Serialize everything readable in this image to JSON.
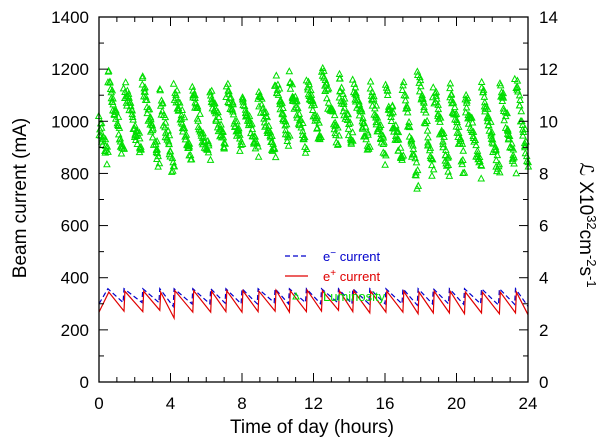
{
  "chart_data": {
    "type": "line",
    "xlabel": "Time of day (hours)",
    "ylabel": "Beam current (mA)",
    "y2label": "ℒ X10³²cm⁻²s⁻¹",
    "y2label_parts": {
      "prefix": "ℒ X10",
      "exp1": "32",
      "mid1": "cm",
      "exp2": "-2",
      "mid2": "s",
      "exp3": "-1"
    },
    "xlim": [
      0,
      24
    ],
    "ylim": [
      0,
      1400
    ],
    "y2lim": [
      0,
      14
    ],
    "x_ticks": [
      "0",
      "4",
      "8",
      "12",
      "16",
      "20",
      "24"
    ],
    "y_ticks": [
      "0",
      "200",
      "400",
      "600",
      "800",
      "1000",
      "1200",
      "1400"
    ],
    "y2_ticks": [
      "0",
      "2",
      "4",
      "6",
      "8",
      "10",
      "12",
      "14"
    ],
    "legend_position": "center-right",
    "series": [
      {
        "name": "e⁻ current",
        "name_base": "e",
        "name_sup": "−",
        "name_rest": " current",
        "style": "dashed",
        "color": "#0000cc",
        "axis": "left",
        "x": [
          0.0,
          0.5,
          1.35,
          1.4,
          2.4,
          2.45,
          3.35,
          3.4,
          4.15,
          4.2,
          5.2,
          5.25,
          6.2,
          6.25,
          7.05,
          7.1,
          7.95,
          8.0,
          8.85,
          8.9,
          9.8,
          9.85,
          10.6,
          10.65,
          11.55,
          11.6,
          12.4,
          12.45,
          13.35,
          13.4,
          14.15,
          14.2,
          15.1,
          15.15,
          16.0,
          16.05,
          16.95,
          17.0,
          17.8,
          17.85,
          18.65,
          18.7,
          19.55,
          19.6,
          20.4,
          20.45,
          21.35,
          21.4,
          22.35,
          22.4,
          23.25,
          23.3,
          24.0
        ],
        "y": [
          300,
          358,
          305,
          358,
          305,
          358,
          305,
          358,
          290,
          358,
          300,
          358,
          300,
          358,
          303,
          358,
          300,
          358,
          300,
          358,
          305,
          358,
          300,
          358,
          305,
          358,
          300,
          358,
          305,
          358,
          300,
          358,
          300,
          358,
          300,
          358,
          300,
          358,
          295,
          358,
          300,
          358,
          300,
          358,
          298,
          358,
          300,
          358,
          295,
          358,
          298,
          358,
          290
        ]
      },
      {
        "name": "e⁺ current",
        "name_base": "e",
        "name_sup": "+",
        "name_rest": " current",
        "style": "solid",
        "color": "#e00000",
        "axis": "left",
        "x": [
          0.0,
          0.55,
          1.4,
          1.45,
          2.45,
          2.5,
          3.4,
          3.45,
          4.2,
          4.25,
          5.25,
          5.3,
          6.25,
          6.3,
          7.1,
          7.15,
          8.0,
          8.05,
          8.9,
          8.95,
          9.85,
          9.9,
          10.65,
          10.7,
          11.6,
          11.65,
          12.45,
          12.5,
          13.4,
          13.45,
          14.2,
          14.25,
          15.15,
          15.2,
          16.05,
          16.1,
          17.0,
          17.05,
          17.85,
          17.9,
          18.7,
          18.75,
          19.6,
          19.65,
          20.45,
          20.5,
          21.4,
          21.45,
          22.4,
          22.45,
          23.3,
          23.35,
          24.0
        ],
        "y": [
          268,
          345,
          272,
          348,
          270,
          348,
          275,
          345,
          245,
          350,
          268,
          350,
          268,
          348,
          270,
          350,
          268,
          350,
          270,
          348,
          272,
          352,
          268,
          350,
          270,
          352,
          272,
          350,
          275,
          350,
          270,
          350,
          265,
          348,
          268,
          348,
          268,
          348,
          262,
          345,
          265,
          348,
          265,
          348,
          262,
          345,
          265,
          345,
          262,
          345,
          265,
          345,
          258
        ]
      },
      {
        "name": "Luminosity",
        "style": "triangle-markers",
        "color": "#00dd00",
        "axis": "right",
        "cycles": [
          {
            "start": 0.0,
            "end": 0.5,
            "peak": 10.0,
            "low": 8.4
          },
          {
            "start": 0.5,
            "end": 1.4,
            "peak": 11.8,
            "low": 8.6
          },
          {
            "start": 1.4,
            "end": 2.4,
            "peak": 11.4,
            "low": 8.7
          },
          {
            "start": 2.4,
            "end": 3.4,
            "peak": 11.5,
            "low": 8.4
          },
          {
            "start": 3.4,
            "end": 4.2,
            "peak": 11.1,
            "low": 7.9
          },
          {
            "start": 4.2,
            "end": 5.2,
            "peak": 11.2,
            "low": 8.6
          },
          {
            "start": 5.2,
            "end": 6.2,
            "peak": 11.0,
            "low": 8.6
          },
          {
            "start": 6.2,
            "end": 7.1,
            "peak": 11.2,
            "low": 8.8
          },
          {
            "start": 7.1,
            "end": 8.0,
            "peak": 11.3,
            "low": 8.9
          },
          {
            "start": 8.0,
            "end": 8.9,
            "peak": 11.0,
            "low": 8.8
          },
          {
            "start": 8.9,
            "end": 9.85,
            "peak": 11.1,
            "low": 8.7
          },
          {
            "start": 9.85,
            "end": 10.65,
            "peak": 11.6,
            "low": 9.2
          },
          {
            "start": 10.65,
            "end": 11.6,
            "peak": 11.6,
            "low": 9.0
          },
          {
            "start": 11.6,
            "end": 12.45,
            "peak": 11.6,
            "low": 9.2
          },
          {
            "start": 12.45,
            "end": 13.4,
            "peak": 11.9,
            "low": 9.2
          },
          {
            "start": 13.4,
            "end": 14.2,
            "peak": 11.5,
            "low": 9.1
          },
          {
            "start": 14.2,
            "end": 15.15,
            "peak": 11.4,
            "low": 8.8
          },
          {
            "start": 15.15,
            "end": 16.05,
            "peak": 11.3,
            "low": 8.6
          },
          {
            "start": 16.05,
            "end": 17.0,
            "peak": 11.2,
            "low": 8.5
          },
          {
            "start": 17.0,
            "end": 17.85,
            "peak": 11.5,
            "low": 7.5
          },
          {
            "start": 17.85,
            "end": 18.7,
            "peak": 11.9,
            "low": 8.0
          },
          {
            "start": 18.7,
            "end": 19.6,
            "peak": 11.3,
            "low": 8.0
          },
          {
            "start": 19.6,
            "end": 20.45,
            "peak": 11.4,
            "low": 8.2
          },
          {
            "start": 20.45,
            "end": 21.4,
            "peak": 11.0,
            "low": 8.1
          },
          {
            "start": 21.4,
            "end": 22.4,
            "peak": 11.2,
            "low": 8.0
          },
          {
            "start": 22.4,
            "end": 23.3,
            "peak": 11.3,
            "low": 8.2
          },
          {
            "start": 23.3,
            "end": 24.0,
            "peak": 11.8,
            "low": 8.3
          }
        ]
      }
    ]
  }
}
